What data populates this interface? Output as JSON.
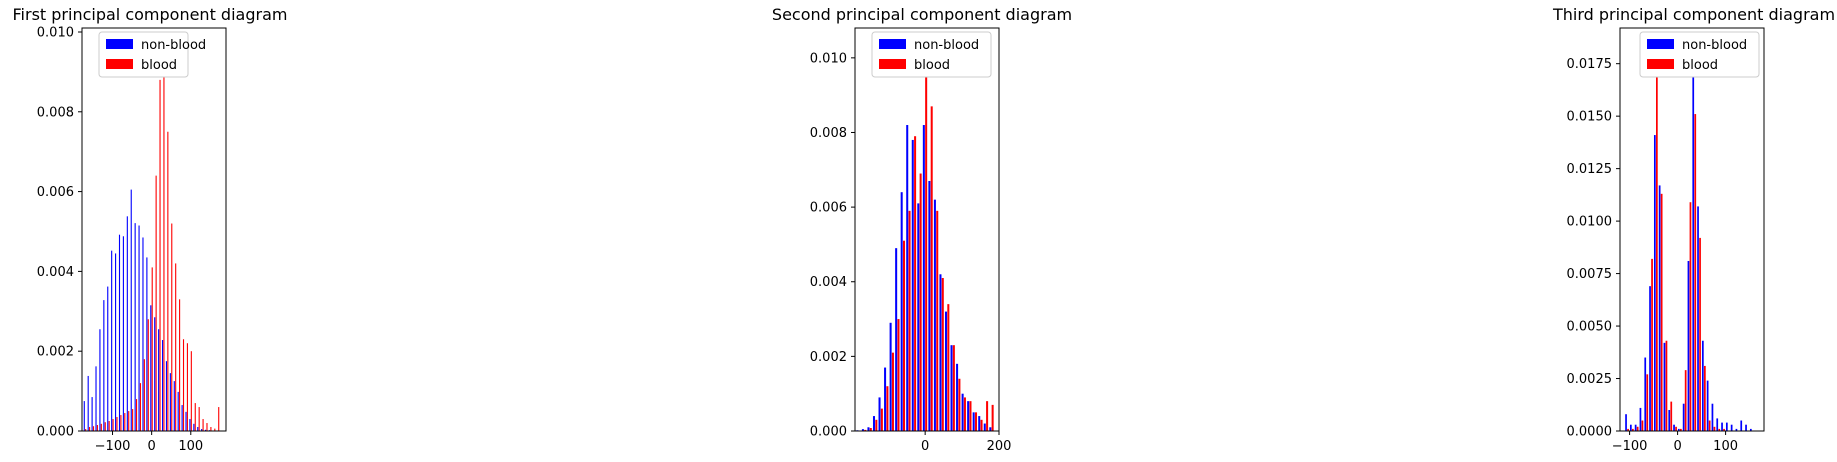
{
  "colors": {
    "non_blood": "#0000ff",
    "blood": "#ff0000"
  },
  "chart_data": [
    {
      "type": "bar",
      "title": "First principal component diagram",
      "legend": {
        "placement": "top-right"
      },
      "xlim": [
        -178,
        190
      ],
      "ylim": [
        0,
        0.0101
      ],
      "xticks": [
        -100,
        0,
        100
      ],
      "xtick_labels": [
        "−100",
        "0",
        "100"
      ],
      "yticks": [
        0,
        0.002,
        0.004,
        0.006,
        0.008,
        0.01
      ],
      "ytick_labels": [
        "0.000",
        "0.002",
        "0.004",
        "0.006",
        "0.008",
        "0.010"
      ],
      "x": [
        -170,
        -160,
        -150,
        -140,
        -130,
        -120,
        -110,
        -100,
        -90,
        -80,
        -70,
        -60,
        -50,
        -40,
        -30,
        -20,
        -10,
        0,
        10,
        20,
        30,
        40,
        50,
        60,
        70,
        80,
        90,
        100,
        110,
        120,
        130,
        140,
        150,
        160,
        170
      ],
      "series": [
        {
          "name": "non-blood",
          "values": [
            0.00075,
            0.00138,
            0.00085,
            0.00162,
            0.00255,
            0.00328,
            0.00362,
            0.00452,
            0.00445,
            0.00492,
            0.00488,
            0.00538,
            0.00605,
            0.00521,
            0.00515,
            0.00485,
            0.00435,
            0.00315,
            0.00285,
            0.00255,
            0.00228,
            0.00175,
            0.00145,
            0.00125,
            0.00098,
            0.00065,
            0.00048,
            0.0003,
            0.00018,
            0.0001,
            5e-05,
            3e-05,
            2e-05,
            1e-05,
            0.0
          ]
        },
        {
          "name": "blood",
          "values": [
            5e-05,
            0.0001,
            0.00012,
            0.00015,
            0.00018,
            0.00022,
            0.00025,
            0.0003,
            0.00035,
            0.0004,
            0.00045,
            0.0005,
            0.00055,
            0.0008,
            0.0012,
            0.0018,
            0.0028,
            0.0041,
            0.0064,
            0.0088,
            0.0093,
            0.0075,
            0.0052,
            0.0042,
            0.0033,
            0.0023,
            0.0022,
            0.002,
            0.0007,
            0.0006,
            0.0003,
            0.0002,
            0.0001,
            6e-05,
            0.0006
          ]
        }
      ]
    },
    {
      "type": "bar",
      "title": "Second principal component diagram",
      "legend": {
        "placement": "top-left"
      },
      "xlim": [
        -190,
        200
      ],
      "ylim": [
        0,
        0.0108
      ],
      "xticks": [
        0,
        200
      ],
      "xtick_labels": [
        "0",
        "200"
      ],
      "yticks": [
        0,
        0.002,
        0.004,
        0.006,
        0.008,
        0.01
      ],
      "ytick_labels": [
        "0.000",
        "0.002",
        "0.004",
        "0.006",
        "0.008",
        "0.010"
      ],
      "x": [
        -180,
        -165,
        -150,
        -135,
        -120,
        -105,
        -90,
        -75,
        -60,
        -45,
        -30,
        -15,
        0,
        15,
        30,
        45,
        60,
        75,
        90,
        105,
        120,
        135,
        150,
        165,
        180
      ],
      "series": [
        {
          "name": "non-blood",
          "values": [
            2e-05,
            5e-05,
            0.0001,
            0.0004,
            0.0009,
            0.0017,
            0.0029,
            0.0049,
            0.0064,
            0.0082,
            0.0078,
            0.0061,
            0.0082,
            0.0067,
            0.0062,
            0.0042,
            0.0032,
            0.0023,
            0.0018,
            0.001,
            0.0008,
            0.0005,
            0.0004,
            0.0002,
            0.0001
          ]
        },
        {
          "name": "blood",
          "values": [
            1e-05,
            3e-05,
            8e-05,
            0.0003,
            0.0006,
            0.0012,
            0.0021,
            0.003,
            0.0051,
            0.0059,
            0.0079,
            0.0069,
            0.0103,
            0.0087,
            0.0059,
            0.0041,
            0.0034,
            0.0023,
            0.0014,
            0.0009,
            0.0008,
            0.0005,
            0.0003,
            0.0008,
            0.0007
          ]
        }
      ]
    },
    {
      "type": "bar",
      "title": "Third principal component diagram",
      "legend": {
        "placement": "top-right"
      },
      "xlim": [
        -120,
        180
      ],
      "ylim": [
        0,
        0.0192
      ],
      "xticks": [
        -100,
        0,
        100
      ],
      "xtick_labels": [
        "−100",
        "0",
        "100"
      ],
      "yticks": [
        0,
        0.0025,
        0.005,
        0.0075,
        0.01,
        0.0125,
        0.015,
        0.0175
      ],
      "ytick_labels": [
        "0.0000",
        "0.0025",
        "0.0050",
        "0.0075",
        "0.0100",
        "0.0125",
        "0.0150",
        "0.0175"
      ],
      "x": [
        -105,
        -95,
        -85,
        -75,
        -65,
        -55,
        -45,
        -35,
        -25,
        -15,
        -5,
        5,
        15,
        25,
        35,
        45,
        55,
        65,
        75,
        85,
        95,
        105,
        115,
        125,
        135,
        145,
        155
      ],
      "series": [
        {
          "name": "non-blood",
          "values": [
            0.0008,
            0.0003,
            0.0003,
            0.0011,
            0.0035,
            0.0069,
            0.0141,
            0.0117,
            0.0042,
            0.001,
            0.0003,
            0.0001,
            0.0013,
            0.0081,
            0.0172,
            0.0107,
            0.0043,
            0.0024,
            0.0013,
            0.0006,
            0.0004,
            0.0004,
            0.0003,
            0.0001,
            0.0005,
            0.0003,
            0.0001
          ]
        },
        {
          "name": "blood",
          "values": [
            0.0001,
            0.0001,
            0.0002,
            0.0005,
            0.0027,
            0.0082,
            0.0185,
            0.0113,
            0.0043,
            0.0014,
            0.0002,
            0.0001,
            0.0029,
            0.0109,
            0.0151,
            0.0092,
            0.0031,
            0.0005,
            0.0002,
            0.0001,
            0.0001,
            0.0,
            0.0,
            0.0,
            0.0,
            0.0,
            0.0
          ]
        }
      ]
    }
  ]
}
